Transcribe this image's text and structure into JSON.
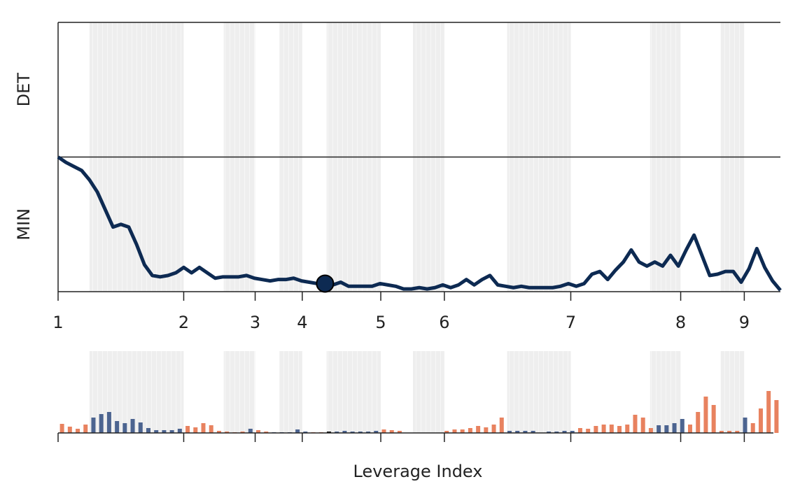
{
  "chart_data": [
    {
      "type": "line",
      "xlim": [
        0,
        92
      ],
      "xticks": [
        {
          "value": 0,
          "label": "1"
        },
        {
          "value": 16,
          "label": "2"
        },
        {
          "value": 25.1,
          "label": "3"
        },
        {
          "value": 31.1,
          "label": "4"
        },
        {
          "value": 41.1,
          "label": "5"
        },
        {
          "value": 49.2,
          "label": "6"
        },
        {
          "value": 65.3,
          "label": "7"
        },
        {
          "value": 79.3,
          "label": "8"
        },
        {
          "value": 87.4,
          "label": "9"
        }
      ],
      "ylim": [
        0,
        2
      ],
      "yticks": [
        {
          "value": 0.5,
          "label": "MIN"
        },
        {
          "value": 1.5,
          "label": "DET"
        }
      ],
      "bands": [
        [
          4,
          16
        ],
        [
          21.1,
          25.1
        ],
        [
          28.2,
          31.1
        ],
        [
          34.2,
          41.1
        ],
        [
          45.2,
          49.2
        ],
        [
          57.2,
          65.3
        ],
        [
          75.4,
          79.3
        ],
        [
          84.4,
          87.4
        ]
      ],
      "highlight_index": 34,
      "series": [
        {
          "color": "#0d2a52",
          "values": [
            1.0,
            0.96,
            0.93,
            0.9,
            0.83,
            0.74,
            0.61,
            0.48,
            0.5,
            0.48,
            0.35,
            0.2,
            0.12,
            0.11,
            0.12,
            0.14,
            0.18,
            0.14,
            0.18,
            0.14,
            0.1,
            0.11,
            0.11,
            0.11,
            0.12,
            0.1,
            0.09,
            0.08,
            0.09,
            0.09,
            0.1,
            0.08,
            0.07,
            0.06,
            0.06,
            0.05,
            0.07,
            0.04,
            0.04,
            0.04,
            0.04,
            0.06,
            0.05,
            0.04,
            0.02,
            0.02,
            0.03,
            0.02,
            0.03,
            0.05,
            0.03,
            0.05,
            0.09,
            0.05,
            0.09,
            0.12,
            0.05,
            0.04,
            0.03,
            0.04,
            0.03,
            0.03,
            0.03,
            0.03,
            0.04,
            0.06,
            0.04,
            0.06,
            0.13,
            0.15,
            0.09,
            0.16,
            0.22,
            0.31,
            0.22,
            0.19,
            0.22,
            0.19,
            0.27,
            0.19,
            0.31,
            0.42,
            0.27,
            0.12,
            0.13,
            0.15,
            0.15,
            0.07,
            0.17,
            0.32,
            0.18,
            0.08,
            0.01
          ]
        }
      ]
    },
    {
      "type": "bar",
      "x_label": "Leverage Index",
      "xlim": [
        0,
        92
      ],
      "xticks": [
        0,
        16,
        25.1,
        31.1,
        41.1,
        49.2,
        65.3,
        79.3,
        87.4
      ],
      "ylim": [
        0,
        65
      ],
      "values": [
        13,
        9,
        6,
        12,
        22,
        27,
        30,
        17,
        14,
        20,
        15,
        7,
        4,
        4,
        4,
        6,
        10,
        8,
        14,
        11,
        3,
        2,
        1,
        2,
        6,
        4,
        2,
        1,
        1,
        1,
        5,
        2,
        1,
        1,
        2,
        2,
        3,
        2,
        2,
        2,
        3,
        5,
        4,
        3,
        0,
        0,
        0,
        0,
        0,
        3,
        5,
        5,
        7,
        10,
        8,
        12,
        22,
        3,
        3,
        3,
        3,
        0,
        2,
        2,
        3,
        3,
        7,
        6,
        10,
        12,
        12,
        10,
        12,
        26,
        22,
        7,
        11,
        11,
        14,
        20,
        12,
        30,
        52,
        40,
        3,
        3,
        3,
        22,
        14,
        35,
        60,
        47
      ],
      "colors": [
        "#e8825f",
        "#e8825f",
        "#e8825f",
        "#e8825f",
        "#4c6490",
        "#4c6490",
        "#4c6490",
        "#4c6490",
        "#4c6490",
        "#4c6490",
        "#4c6490",
        "#4c6490",
        "#4c6490",
        "#4c6490",
        "#4c6490",
        "#4c6490",
        "#e8825f",
        "#e8825f",
        "#e8825f",
        "#e8825f",
        "#e8825f",
        "#e8825f",
        "#e8825f",
        "#e8825f",
        "#4c6490",
        "#e8825f",
        "#e8825f",
        "#4c6490",
        "#4c6490",
        "#4c6490",
        "#4c6490",
        "#4c6490",
        "#e8825f",
        "#e8825f",
        "#111111",
        "#4c6490",
        "#4c6490",
        "#4c6490",
        "#4c6490",
        "#4c6490",
        "#4c6490",
        "#e8825f",
        "#e8825f",
        "#e8825f",
        "#e8825f",
        "#e8825f",
        "#e8825f",
        "#e8825f",
        "#e8825f",
        "#e8825f",
        "#e8825f",
        "#e8825f",
        "#e8825f",
        "#e8825f",
        "#e8825f",
        "#e8825f",
        "#e8825f",
        "#4c6490",
        "#4c6490",
        "#4c6490",
        "#4c6490",
        "#4c6490",
        "#4c6490",
        "#4c6490",
        "#4c6490",
        "#4c6490",
        "#e8825f",
        "#e8825f",
        "#e8825f",
        "#e8825f",
        "#e8825f",
        "#e8825f",
        "#e8825f",
        "#e8825f",
        "#e8825f",
        "#e8825f",
        "#4c6490",
        "#4c6490",
        "#4c6490",
        "#4c6490",
        "#e8825f",
        "#e8825f",
        "#e8825f",
        "#e8825f",
        "#e8825f",
        "#e8825f",
        "#e8825f",
        "#4c6490",
        "#e8825f",
        "#e8825f",
        "#e8825f",
        "#e8825f"
      ]
    }
  ]
}
